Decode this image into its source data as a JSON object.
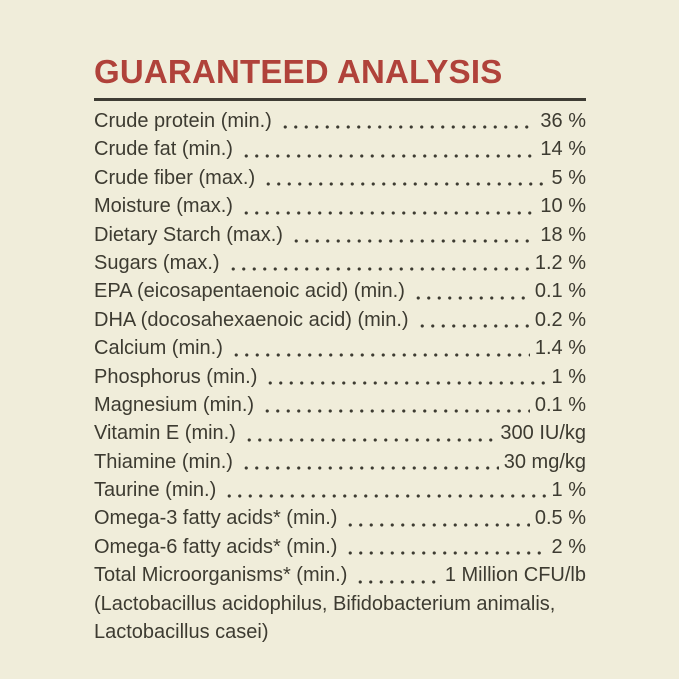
{
  "page": {
    "background_color": "#f0edda",
    "accent_color": "#b0423a",
    "text_color": "#3d3b31",
    "rule_color": "#3e3c34"
  },
  "header": {
    "title": "GUARANTEED ANALYSIS"
  },
  "analysis": {
    "rows": [
      {
        "label": "Crude protein (min.)",
        "value": "36 %"
      },
      {
        "label": "Crude fat (min.)",
        "value": "14 %"
      },
      {
        "label": "Crude fiber (max.)",
        "value": "5 %"
      },
      {
        "label": "Moisture (max.)",
        "value": "10 %"
      },
      {
        "label": "Dietary Starch (max.)",
        "value": "18 %"
      },
      {
        "label": "Sugars (max.)",
        "value": "1.2 %"
      },
      {
        "label": "EPA (eicosapentaenoic acid) (min.)",
        "value": "0.1 %"
      },
      {
        "label": "DHA (docosahexaenoic acid) (min.)",
        "value": "0.2 %"
      },
      {
        "label": "Calcium (min.)",
        "value": "1.4 %"
      },
      {
        "label": "Phosphorus (min.)",
        "value": "1 %"
      },
      {
        "label": "Magnesium (min.)",
        "value": "0.1 %"
      },
      {
        "label": "Vitamin E (min.)",
        "value": "300 IU/kg"
      },
      {
        "label": "Thiamine (min.)",
        "value": "30 mg/kg"
      },
      {
        "label": "Taurine (min.)",
        "value": "1 %"
      },
      {
        "label": "Omega-3 fatty acids* (min.)",
        "value": "0.5 %"
      },
      {
        "label": "Omega-6 fatty acids* (min.)",
        "value": "2 %"
      },
      {
        "label": "Total Microorganisms* (min.)",
        "value": "1 Million CFU/lb"
      }
    ],
    "footnote_lines": [
      "(Lactobacillus acidophilus, Bifidobacterium animalis,",
      "Lactobacillus casei)"
    ]
  }
}
